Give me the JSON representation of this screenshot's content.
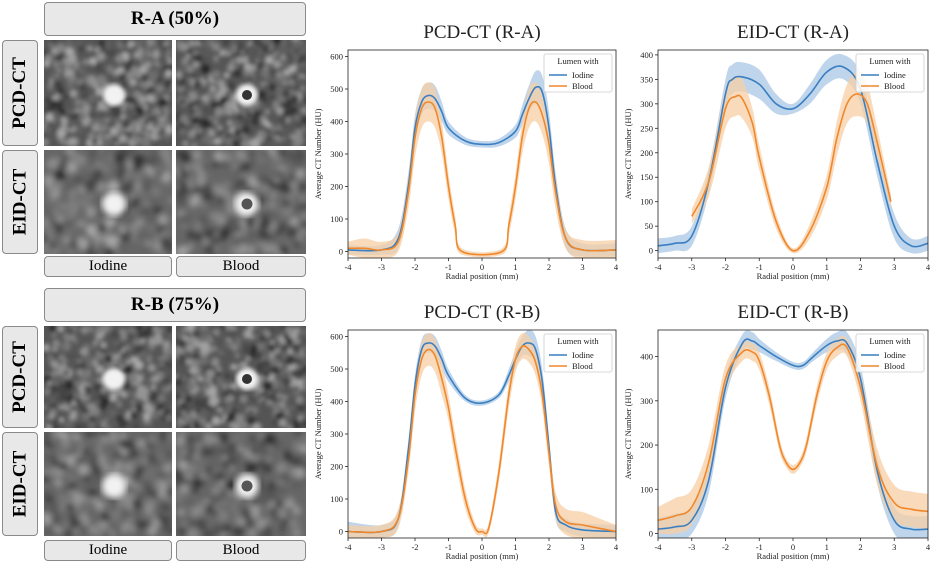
{
  "image_panels": {
    "groups": [
      {
        "id": "ra",
        "title": "R-A (50%)",
        "rows": [
          "PCD-CT",
          "EID-CT"
        ]
      },
      {
        "id": "rb",
        "title": "R-B (75%)",
        "rows": [
          "PCD-CT",
          "EID-CT"
        ]
      }
    ],
    "columns": [
      "Iodine",
      "Blood"
    ]
  },
  "colors": {
    "iodine": "#3a7fc1",
    "blood": "#f0882b",
    "iodine_band": "#a9c7e6",
    "blood_band": "#f7cfa5"
  },
  "chart_data": [
    {
      "type": "line",
      "title": "PCD-CT (R-A)",
      "xlabel": "Radial position (mm)",
      "ylabel": "Average CT Number (HU)",
      "xlim": [
        -4,
        4
      ],
      "ylim": [
        -20,
        620
      ],
      "xticks": [
        -4,
        -3,
        -2,
        -1,
        0,
        1,
        2,
        3,
        4
      ],
      "yticks": [
        0,
        100,
        200,
        300,
        400,
        500,
        600
      ],
      "legend": {
        "title": "Lumen with",
        "entries": [
          "Iodine",
          "Blood"
        ],
        "position": "top-right"
      },
      "series": [
        {
          "name": "Iodine",
          "color": "#3a7fc1",
          "x": [
            -4,
            -3,
            -2.5,
            -2.2,
            -2,
            -1.8,
            -1.6,
            -1.4,
            -1.2,
            -1,
            -0.5,
            0,
            0.5,
            1,
            1.2,
            1.4,
            1.6,
            1.8,
            2,
            2.2,
            2.5,
            3,
            4
          ],
          "y": [
            5,
            5,
            40,
            200,
            380,
            460,
            480,
            470,
            430,
            380,
            340,
            330,
            335,
            370,
            420,
            470,
            505,
            490,
            380,
            200,
            40,
            5,
            5
          ],
          "band": [
            15,
            15,
            30,
            40,
            40,
            40,
            40,
            40,
            30,
            20,
            12,
            10,
            12,
            20,
            30,
            40,
            50,
            50,
            50,
            40,
            30,
            20,
            20
          ]
        },
        {
          "name": "Blood",
          "color": "#f0882b",
          "x": [
            -4,
            -3.5,
            -3,
            -2.5,
            -2.2,
            -2,
            -1.8,
            -1.6,
            -1.4,
            -1.2,
            -1,
            -0.8,
            -0.6,
            0.6,
            0.8,
            1,
            1.2,
            1.4,
            1.6,
            1.8,
            2,
            2.2,
            2.5,
            3,
            4
          ],
          "y": [
            10,
            10,
            5,
            30,
            180,
            350,
            440,
            460,
            440,
            350,
            200,
            80,
            0,
            0,
            80,
            200,
            350,
            440,
            460,
            420,
            330,
            180,
            40,
            5,
            5
          ],
          "band": [
            20,
            30,
            25,
            30,
            50,
            60,
            60,
            60,
            60,
            50,
            40,
            30,
            10,
            10,
            30,
            40,
            50,
            60,
            60,
            60,
            60,
            50,
            30,
            30,
            30
          ]
        }
      ]
    },
    {
      "type": "line",
      "title": "EID-CT (R-A)",
      "xlabel": "Radial position (mm)",
      "ylabel": "Average CT Number (HU)",
      "xlim": [
        -4,
        4
      ],
      "ylim": [
        -15,
        410
      ],
      "xticks": [
        -4,
        -3,
        -2,
        -1,
        0,
        1,
        2,
        3,
        4
      ],
      "yticks": [
        0,
        50,
        100,
        150,
        200,
        250,
        300,
        350,
        400
      ],
      "legend": {
        "title": "Lumen with",
        "entries": [
          "Iodine",
          "Blood"
        ],
        "position": "top-right"
      },
      "series": [
        {
          "name": "Iodine",
          "color": "#3a7fc1",
          "x": [
            -4,
            -3.5,
            -3,
            -2.5,
            -2,
            -1.8,
            -1.5,
            -1,
            -0.5,
            0,
            0.5,
            1,
            1.5,
            2,
            2.5,
            3,
            3.5,
            4
          ],
          "y": [
            10,
            15,
            30,
            140,
            320,
            350,
            355,
            340,
            300,
            290,
            320,
            365,
            375,
            330,
            180,
            50,
            10,
            15
          ],
          "band": [
            15,
            15,
            20,
            25,
            30,
            30,
            30,
            30,
            20,
            10,
            20,
            25,
            25,
            30,
            30,
            25,
            15,
            15
          ]
        },
        {
          "name": "Blood",
          "color": "#f0882b",
          "x": [
            -3,
            -2.5,
            -2,
            -1.7,
            -1.5,
            -1.2,
            -1,
            -0.5,
            0,
            0.5,
            1,
            1.3,
            1.6,
            1.9,
            2.2,
            2.5,
            2.9
          ],
          "y": [
            70,
            140,
            290,
            315,
            310,
            260,
            190,
            60,
            0,
            40,
            130,
            230,
            300,
            320,
            300,
            220,
            100
          ],
          "band": [
            15,
            30,
            40,
            40,
            40,
            30,
            25,
            15,
            5,
            15,
            25,
            35,
            40,
            45,
            40,
            30,
            15
          ]
        }
      ]
    },
    {
      "type": "line",
      "title": "PCD-CT (R-B)",
      "xlabel": "Radial position (mm)",
      "ylabel": "Average CT Number (HU)",
      "xlim": [
        -4,
        4
      ],
      "ylim": [
        -20,
        620
      ],
      "xticks": [
        -4,
        -3,
        -2,
        -1,
        0,
        1,
        2,
        3,
        4
      ],
      "yticks": [
        0,
        100,
        200,
        300,
        400,
        500,
        600
      ],
      "legend": {
        "title": "Lumen with",
        "entries": [
          "Iodine",
          "Blood"
        ],
        "position": "top-right"
      },
      "series": [
        {
          "name": "Iodine",
          "color": "#3a7fc1",
          "x": [
            -4,
            -3,
            -2.5,
            -2.2,
            -2,
            -1.8,
            -1.6,
            -1.4,
            -1.2,
            -1,
            -0.5,
            0,
            0.5,
            0.8,
            1,
            1.2,
            1.4,
            1.6,
            1.8,
            2,
            2.2,
            2.5,
            3,
            4
          ],
          "y": [
            0,
            0,
            40,
            250,
            450,
            560,
            580,
            570,
            530,
            480,
            410,
            395,
            420,
            480,
            530,
            570,
            580,
            560,
            460,
            260,
            60,
            20,
            5,
            0
          ],
          "band": [
            30,
            20,
            25,
            30,
            30,
            30,
            30,
            30,
            25,
            20,
            10,
            8,
            10,
            20,
            25,
            30,
            40,
            40,
            40,
            30,
            25,
            20,
            20,
            20
          ]
        },
        {
          "name": "Blood",
          "color": "#f0882b",
          "x": [
            -4,
            -3,
            -2.5,
            -2.2,
            -2,
            -1.8,
            -1.6,
            -1.4,
            -1.2,
            -1,
            -0.8,
            -0.5,
            -0.2,
            0,
            0.2,
            0.5,
            0.8,
            1,
            1.2,
            1.4,
            1.6,
            1.8,
            2,
            2.2,
            2.5,
            3,
            3.5,
            4
          ],
          "y": [
            0,
            0,
            40,
            220,
            420,
            530,
            560,
            540,
            470,
            380,
            260,
            100,
            10,
            0,
            10,
            180,
            420,
            530,
            570,
            560,
            520,
            420,
            240,
            80,
            30,
            20,
            10,
            0
          ],
          "band": [
            20,
            20,
            30,
            40,
            50,
            50,
            50,
            50,
            50,
            40,
            40,
            30,
            15,
            10,
            15,
            30,
            40,
            40,
            40,
            40,
            40,
            40,
            40,
            40,
            40,
            40,
            30,
            20
          ]
        }
      ]
    },
    {
      "type": "line",
      "title": "EID-CT (R-B)",
      "xlabel": "Radial position (mm)",
      "ylabel": "Average CT Number (HU)",
      "xlim": [
        -4,
        4
      ],
      "ylim": [
        -10,
        460
      ],
      "xticks": [
        -4,
        -3,
        -2,
        -1,
        0,
        1,
        2,
        3,
        4
      ],
      "yticks": [
        0,
        100,
        200,
        300,
        400
      ],
      "legend": {
        "title": "Lumen with",
        "entries": [
          "Iodine",
          "Blood"
        ],
        "position": "top-right"
      },
      "series": [
        {
          "name": "Iodine",
          "color": "#3a7fc1",
          "x": [
            -4,
            -3.5,
            -3,
            -2.5,
            -2,
            -1.5,
            -1.2,
            -1,
            -0.5,
            0,
            0.3,
            0.6,
            1,
            1.3,
            1.6,
            2,
            2.5,
            3,
            3.5,
            4
          ],
          "y": [
            10,
            15,
            30,
            120,
            330,
            430,
            435,
            425,
            400,
            380,
            380,
            400,
            425,
            435,
            430,
            350,
            140,
            30,
            10,
            10
          ],
          "band": [
            25,
            30,
            30,
            30,
            25,
            20,
            20,
            15,
            10,
            8,
            8,
            10,
            15,
            20,
            25,
            30,
            30,
            30,
            30,
            30
          ]
        },
        {
          "name": "Blood",
          "color": "#f0882b",
          "x": [
            -4,
            -3.5,
            -3,
            -2.5,
            -2,
            -1.5,
            -1.2,
            -1,
            -0.7,
            -0.4,
            -0.2,
            0,
            0.2,
            0.4,
            0.7,
            1,
            1.3,
            1.6,
            2,
            2.5,
            3,
            3.5,
            4
          ],
          "y": [
            30,
            40,
            60,
            160,
            350,
            410,
            410,
            390,
            310,
            200,
            160,
            145,
            160,
            200,
            310,
            390,
            420,
            420,
            330,
            150,
            70,
            55,
            50
          ],
          "band": [
            30,
            40,
            40,
            40,
            30,
            20,
            20,
            20,
            20,
            15,
            10,
            10,
            10,
            15,
            20,
            20,
            20,
            20,
            30,
            40,
            40,
            40,
            40
          ]
        }
      ]
    }
  ]
}
